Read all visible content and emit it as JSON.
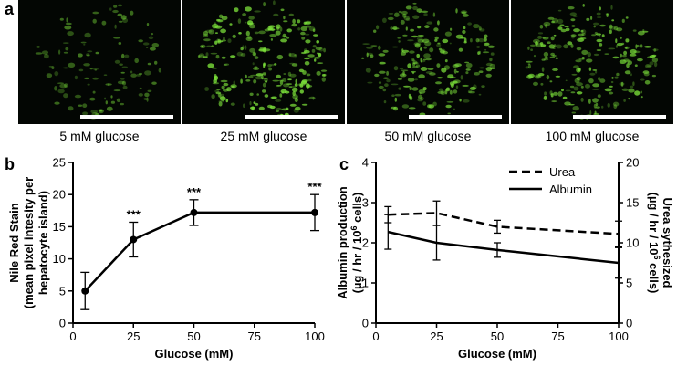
{
  "panel_a": {
    "label": "a",
    "images": [
      {
        "caption": "5 mM glucose",
        "intensity": 0.45
      },
      {
        "caption": "25 mM glucose",
        "intensity": 1.0
      },
      {
        "caption": "50 mM glucose",
        "intensity": 0.85
      },
      {
        "caption": "100 mM glucose",
        "intensity": 0.9
      }
    ]
  },
  "panel_b": {
    "label": "b"
  },
  "panel_c": {
    "label": "c"
  },
  "colors": {
    "line": "#000000",
    "stain_green": "#7be03a",
    "background": "#030603"
  },
  "chart_data": [
    {
      "type": "line",
      "ylabel_line1": "Nile Red Stain",
      "ylabel_line2": "(mean pixel intesity per",
      "ylabel_line3": "hepatocyte island)",
      "xlabel": "Glucose (mM)",
      "xlim": [
        0,
        100
      ],
      "ylim": [
        0,
        25
      ],
      "xticks": [
        0,
        25,
        50,
        75,
        100
      ],
      "yticks": [
        0,
        5,
        10,
        15,
        20,
        25
      ],
      "x": [
        5,
        25,
        50,
        100
      ],
      "y": [
        5.0,
        13.0,
        17.2,
        17.2
      ],
      "err": [
        2.9,
        2.7,
        2.0,
        2.8
      ],
      "annotations": [
        "",
        "***",
        "***",
        "***"
      ]
    },
    {
      "type": "line",
      "ylabel_line1": "Albumin production",
      "ylabel_line2": "(µg / hr / 10",
      "ylabel_sup": "6",
      "ylabel_line2_end": " cells)",
      "y2label_line1": "Urea sythesized",
      "y2label_line2": "(µg / hr / 10",
      "y2label_sup": "6",
      "y2label_line2_end": " cells)",
      "xlabel": "Glucose (mM)",
      "xlim": [
        0,
        100
      ],
      "ylim": [
        0,
        4
      ],
      "y2lim": [
        0,
        20
      ],
      "xticks": [
        0,
        25,
        50,
        75,
        100
      ],
      "yticks": [
        0,
        1,
        2,
        3,
        4
      ],
      "y2ticks": [
        0,
        5,
        10,
        15,
        20
      ],
      "legend": [
        "Urea",
        "Albumin"
      ],
      "legend_position": "top-right",
      "series": [
        {
          "name": "Urea",
          "axis": "right",
          "style": "dashed",
          "x": [
            5,
            25,
            50,
            100
          ],
          "y": [
            13.5,
            13.7,
            12.0,
            11.1
          ],
          "err": [
            1.0,
            1.5,
            0.8,
            1.6
          ]
        },
        {
          "name": "Albumin",
          "axis": "left",
          "style": "solid",
          "x": [
            5,
            25,
            50,
            100
          ],
          "y": [
            2.27,
            2.0,
            1.82,
            1.5
          ],
          "err": [
            0.43,
            0.43,
            0.18,
            0.38
          ]
        }
      ]
    }
  ]
}
